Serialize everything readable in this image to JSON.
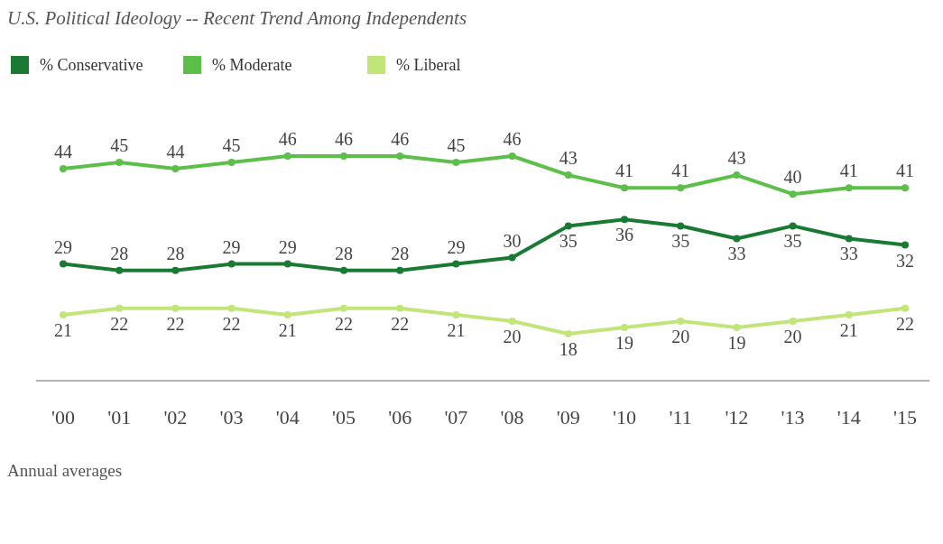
{
  "chart_data": {
    "type": "line",
    "title": "U.S. Political Ideology -- Recent Trend Among Independents",
    "categories": [
      "'00",
      "'01",
      "'02",
      "'03",
      "'04",
      "'05",
      "'06",
      "'07",
      "'08",
      "'09",
      "'10",
      "'11",
      "'12",
      "'13",
      "'14",
      "'15"
    ],
    "series": [
      {
        "name": "% Conservative",
        "color": "#1a7a33",
        "values": [
          29,
          28,
          28,
          29,
          29,
          28,
          28,
          29,
          30,
          35,
          36,
          35,
          33,
          35,
          33,
          32
        ]
      },
      {
        "name": "% Moderate",
        "color": "#5cbf4a",
        "values": [
          44,
          45,
          44,
          45,
          46,
          46,
          46,
          45,
          46,
          43,
          41,
          41,
          43,
          40,
          41,
          41
        ]
      },
      {
        "name": "% Liberal",
        "color": "#c2e57a",
        "values": [
          21,
          22,
          22,
          22,
          21,
          22,
          22,
          21,
          20,
          18,
          19,
          20,
          19,
          20,
          21,
          22
        ]
      }
    ],
    "data_labels": true,
    "marker": "circle",
    "line_style": "solid",
    "legend": "top left",
    "annotations": [
      "Annual averages"
    ]
  }
}
